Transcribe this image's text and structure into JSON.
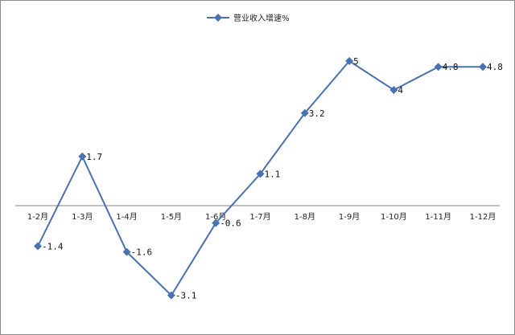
{
  "chart_data": {
    "type": "line",
    "title": "",
    "xlabel": "",
    "ylabel": "",
    "categories": [
      "1-2月",
      "1-3月",
      "1-4月",
      "1-5月",
      "1-6月",
      "1-7月",
      "1-8月",
      "1-9月",
      "1-10月",
      "1-11月",
      "1-12月"
    ],
    "series": [
      {
        "name": "营业收入增速%",
        "values": [
          -1.4,
          1.7,
          -1.6,
          -3.1,
          -0.6,
          1.1,
          3.2,
          5,
          4,
          4.8,
          4.8
        ],
        "data_labels": [
          "-1.4",
          "1.7",
          "-1.6",
          "-3.1",
          "-0.6",
          "1.1",
          "3.2",
          "5",
          "4",
          "4.8",
          "4.8"
        ],
        "color": "#4a72b0",
        "marker": "diamond"
      }
    ],
    "ylim": [
      -4,
      6
    ],
    "grid": false,
    "legend_position": "top-center",
    "axis_color": "#888888"
  }
}
